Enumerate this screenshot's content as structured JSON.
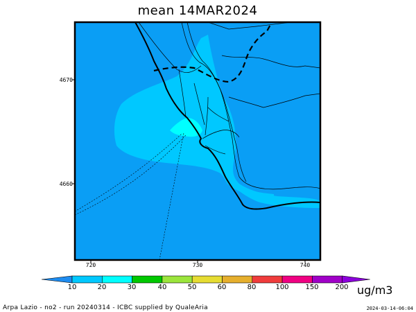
{
  "title": "mean 14MAR2024",
  "axes": {
    "y_ticks": [
      "4670",
      "4660"
    ],
    "x_ticks": [
      "720",
      "730",
      "740"
    ]
  },
  "colorbar": {
    "labels": [
      "10",
      "20",
      "30",
      "40",
      "50",
      "60",
      "80",
      "100",
      "150",
      "200"
    ],
    "colors": [
      "#1e8cf0",
      "#00c8ff",
      "#00ffff",
      "#00c800",
      "#9be53c",
      "#e6dc32",
      "#e6af2d",
      "#f03c3c",
      "#f00082",
      "#a000c8",
      "#8c00dc"
    ],
    "unit": "ug/m3"
  },
  "footer": {
    "left": "Arpa Lazio - no2 - run 20240314 - ICBC supplied by QualeAria",
    "right": "2024-03-14-06:04"
  },
  "colors": {
    "background_field": "#0a9ef5",
    "plume_light": "#00c8ff",
    "plume_cyan": "#00ffff"
  }
}
